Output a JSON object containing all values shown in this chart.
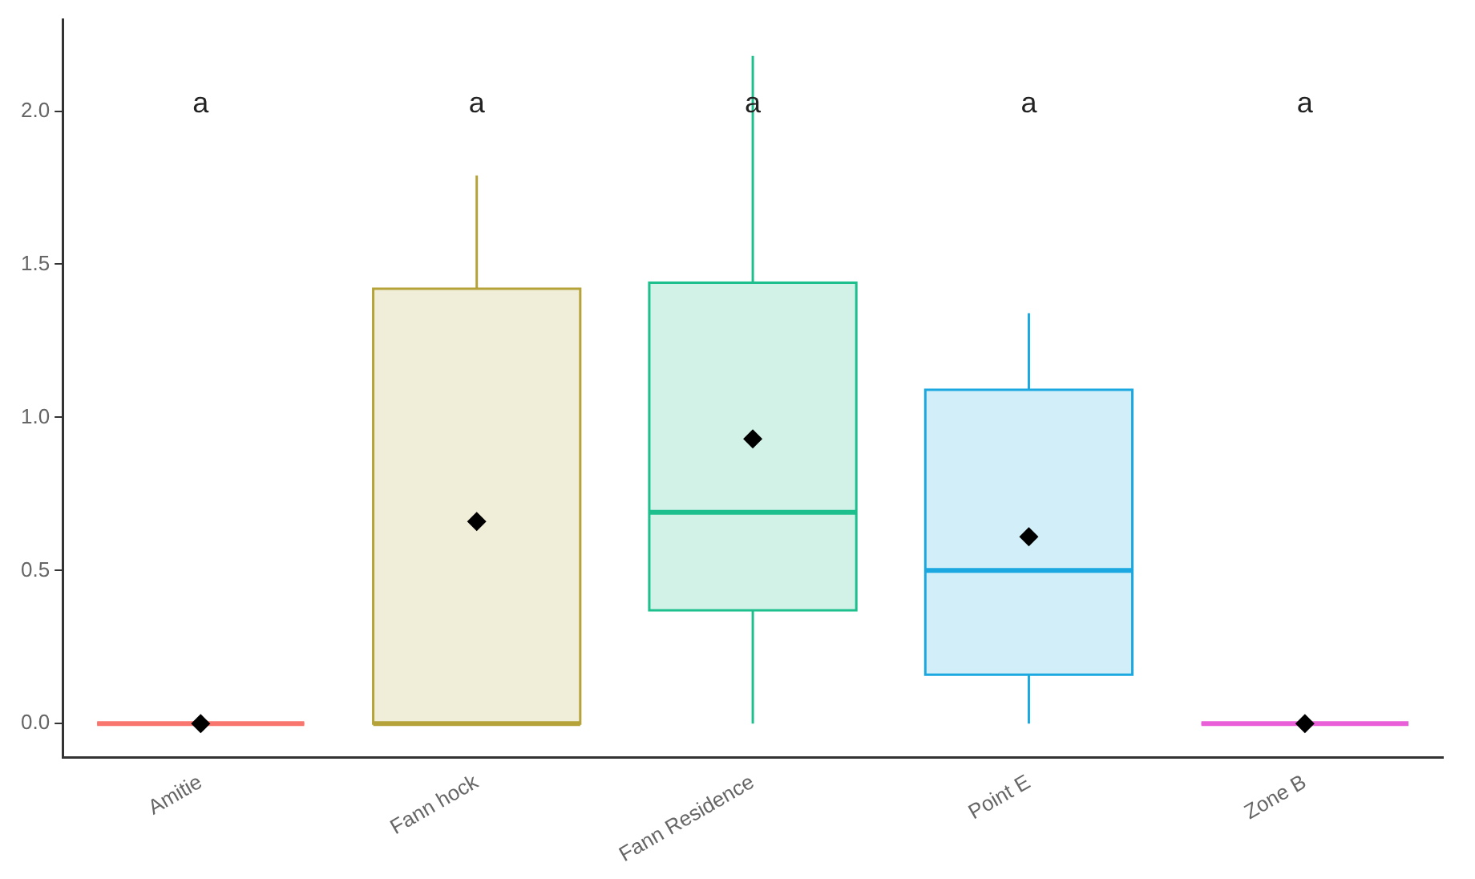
{
  "chart_data": {
    "type": "box",
    "categories": [
      "Amitie",
      "Fann hock",
      "Fann Residence",
      "Point E",
      "Zone B"
    ],
    "colors": [
      "#f8766d",
      "#b5a33a",
      "#1dbf8c",
      "#1ba8e0",
      "#e85fd8"
    ],
    "boxes": [
      {
        "low": 0,
        "q1": 0,
        "median": 0,
        "q3": 0,
        "high": 0,
        "mean": 0
      },
      {
        "low": 0,
        "q1": 0,
        "median": 0,
        "q3": 1.42,
        "high": 1.79,
        "mean": 0.66
      },
      {
        "low": 0,
        "q1": 0.37,
        "median": 0.69,
        "q3": 1.44,
        "high": 2.18,
        "mean": 0.93
      },
      {
        "low": 0,
        "q1": 0.16,
        "median": 0.5,
        "q3": 1.09,
        "high": 1.34,
        "mean": 0.61
      },
      {
        "low": 0,
        "q1": 0,
        "median": 0,
        "q3": 0,
        "high": 0,
        "mean": 0
      }
    ],
    "annotations": [
      "a",
      "a",
      "a",
      "a",
      "a"
    ],
    "ylim": [
      -0.11,
      2.3
    ],
    "yticks": [
      {
        "value": 0,
        "label": "0.0"
      },
      {
        "value": 0.5,
        "label": "0.5"
      },
      {
        "value": 1,
        "label": "1.0"
      },
      {
        "value": 1.5,
        "label": "1.5"
      },
      {
        "value": 2,
        "label": "2.0"
      }
    ],
    "grid": false,
    "legend": false
  }
}
